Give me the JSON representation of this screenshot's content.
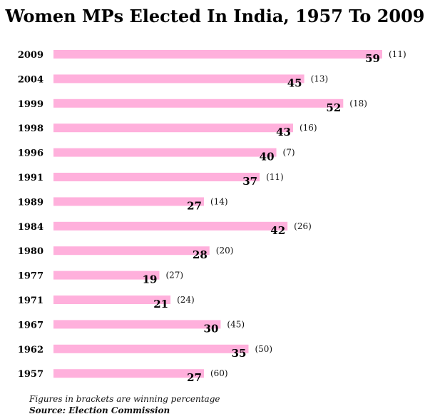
{
  "chart_data": {
    "type": "bar",
    "orientation": "horizontal",
    "title": "Women MPs Elected In India, 1957 To 2009",
    "categories": [
      "2009",
      "2004",
      "1999",
      "1998",
      "1996",
      "1991",
      "1989",
      "1984",
      "1980",
      "1977",
      "1971",
      "1967",
      "1962",
      "1957"
    ],
    "values": [
      59,
      45,
      52,
      43,
      40,
      37,
      27,
      42,
      28,
      19,
      21,
      30,
      35,
      27
    ],
    "bracket_labels": [
      "(11)",
      "(13)",
      "(18)",
      "(16)",
      "(7)",
      "(11)",
      "(14)",
      "(26)",
      "(20)",
      "(27)",
      "(24)",
      "(45)",
      "(50)",
      "(60)"
    ],
    "bar_color": "#ffb0dc",
    "xlim": [
      0,
      59
    ],
    "grid": false,
    "legend": "none"
  },
  "footnote": "Figures in brackets are winning percentage",
  "source": "Source: Election Commission"
}
